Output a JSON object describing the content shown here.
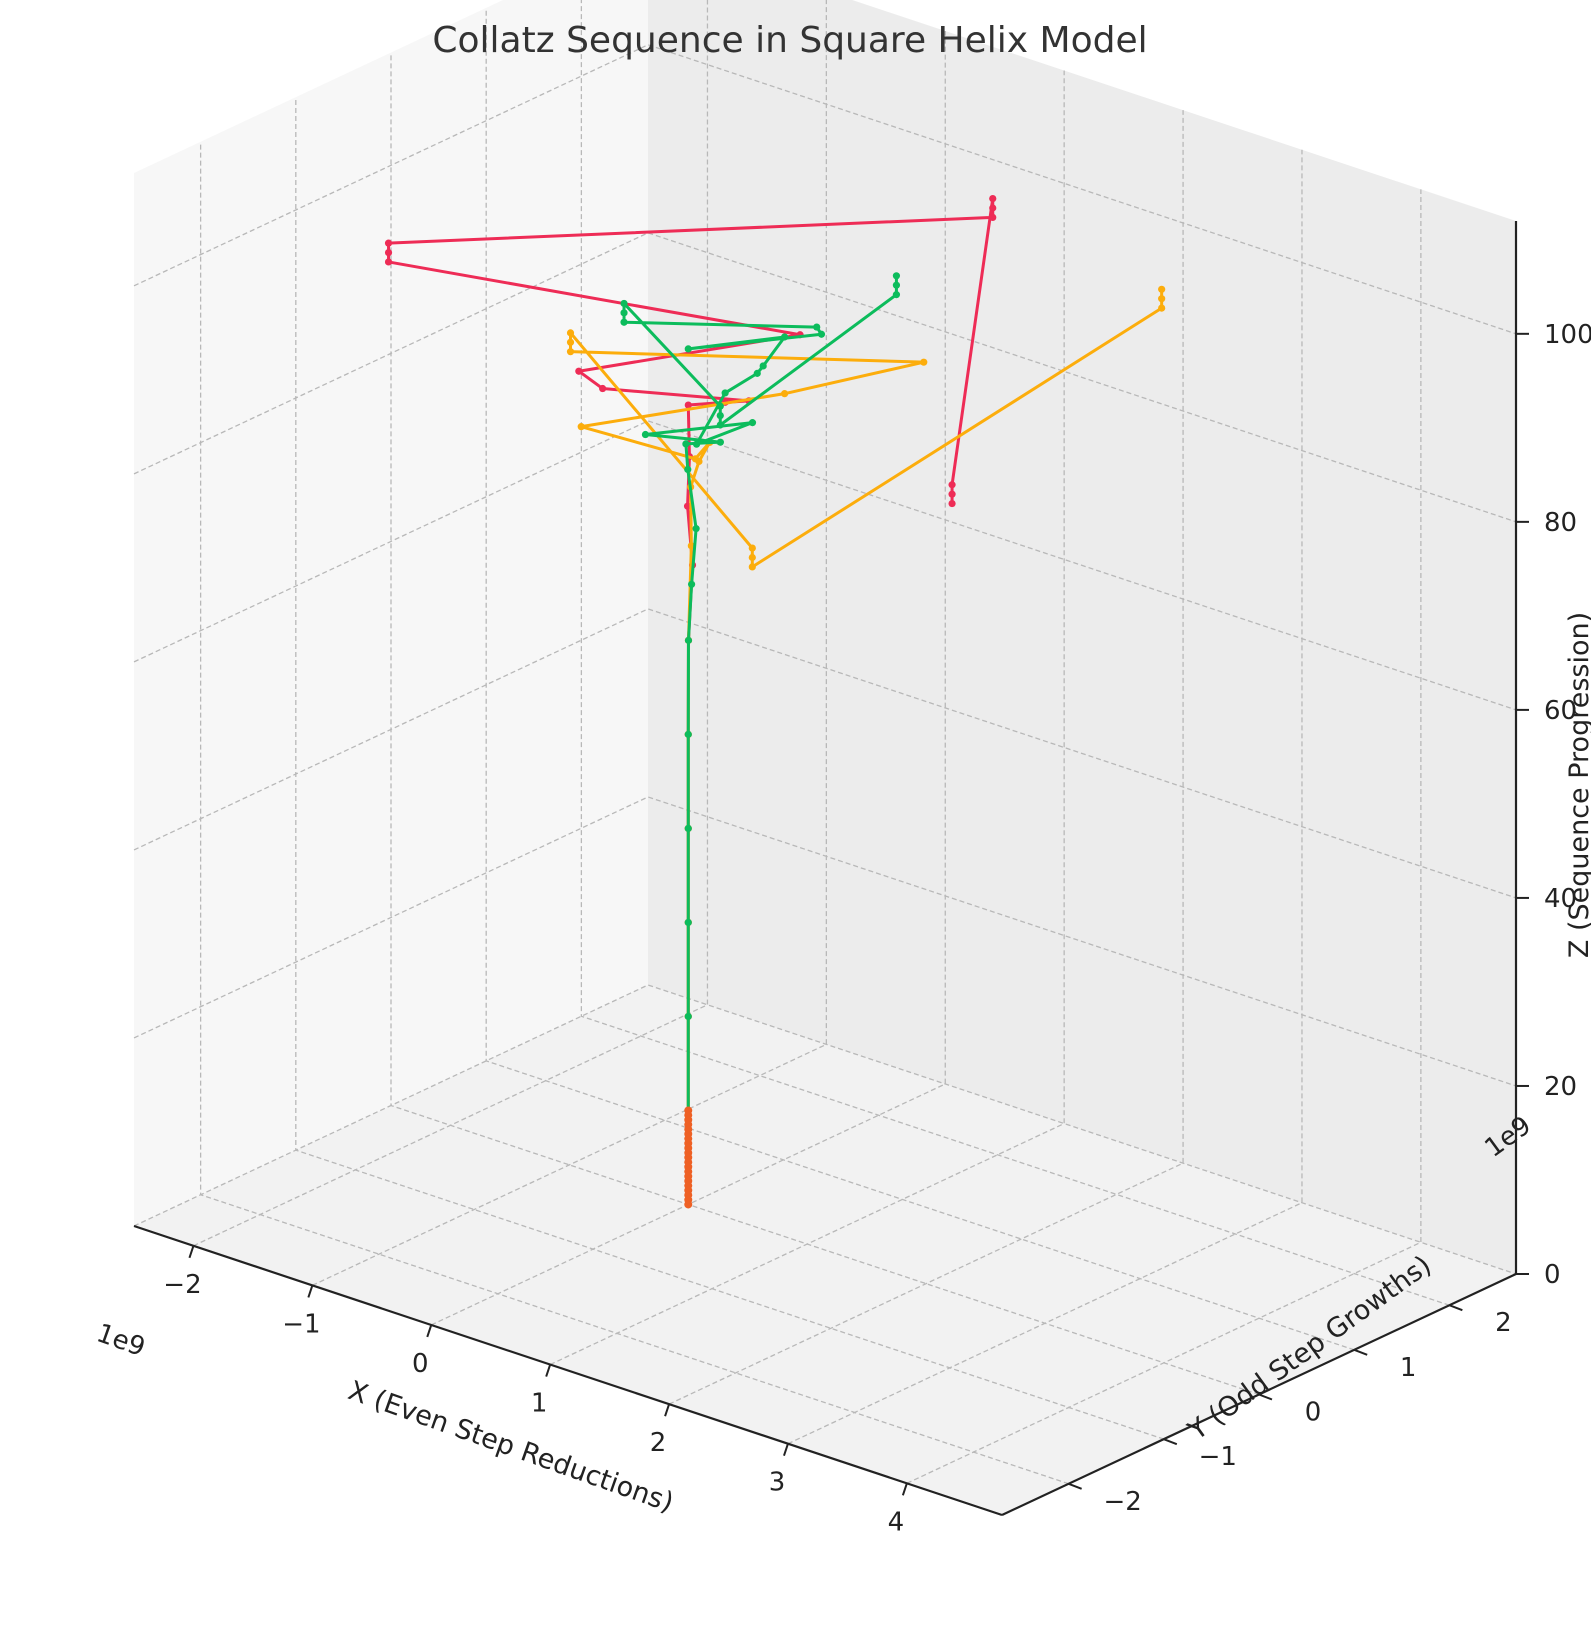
{
  "chart_data": {
    "type": "line",
    "projection": "3d",
    "title": "Collatz Sequence in Square Helix Model",
    "xlabel": "X (Even Step Reductions)",
    "ylabel": "Y (Odd Step Growths)",
    "zlabel": "Z (Sequence Progression)",
    "x_offset_label": "1e9",
    "y_offset_label": "1e9",
    "x_ticks": [
      "−2",
      "−1",
      "0",
      "1",
      "2",
      "3",
      "4"
    ],
    "y_ticks": [
      "−2",
      "−1",
      "0",
      "1",
      "2"
    ],
    "z_ticks": [
      "0",
      "20",
      "40",
      "60",
      "80",
      "100"
    ],
    "xlim": [
      -2.5,
      4.8
    ],
    "ylim": [
      -2.7,
      2.7
    ],
    "zlim": [
      0,
      112
    ],
    "grid": true,
    "legend": "none",
    "colors": {
      "red": "#ee2c56",
      "orange": "#fcad0c",
      "green": "#0cbc5c",
      "start": "#ee6024"
    },
    "series": [
      {
        "color": "#ee2c56",
        "points": [
          [
            0,
            0,
            0
          ],
          [
            0,
            0,
            10
          ],
          [
            0,
            0,
            20
          ],
          [
            0,
            0,
            30
          ],
          [
            0,
            0,
            40
          ],
          [
            0,
            0,
            50
          ],
          [
            0.001,
            0.001,
            60
          ],
          [
            0.02,
            0.02,
            68
          ],
          [
            -0.03,
            0.03,
            74
          ],
          [
            0.05,
            -0.05,
            80
          ],
          [
            -0.2,
            0.25,
            83
          ],
          [
            0.15,
            0.2,
            85
          ],
          [
            0.35,
            0.2,
            86
          ],
          [
            -0.4,
            -0.4,
            87
          ],
          [
            -0.6,
            -0.4,
            88
          ],
          [
            0.5,
            0.55,
            92
          ],
          [
            -1.4,
            -1.4,
            101
          ],
          [
            -1.4,
            -1.4,
            102
          ],
          [
            -1.4,
            -1.4,
            103
          ],
          [
            1.4,
            1.45,
            104
          ],
          [
            1.4,
            1.45,
            105
          ],
          [
            1.4,
            1.45,
            106
          ],
          [
            4.3,
            -2.6,
            107
          ],
          [
            4.3,
            -2.6,
            106
          ],
          [
            4.3,
            -2.6,
            105
          ]
        ]
      },
      {
        "color": "#fcad0c",
        "points": [
          [
            0,
            0,
            0
          ],
          [
            0,
            0,
            10
          ],
          [
            0,
            0,
            20
          ],
          [
            0,
            0,
            30
          ],
          [
            0,
            0,
            40
          ],
          [
            0,
            0,
            50
          ],
          [
            0.001,
            0.001,
            60
          ],
          [
            0.01,
            0.02,
            70
          ],
          [
            -0.02,
            0.05,
            76
          ],
          [
            0.05,
            0.05,
            79
          ],
          [
            0.1,
            0.1,
            81
          ],
          [
            0.3,
            -0.3,
            82
          ],
          [
            -0.5,
            -0.5,
            83
          ],
          [
            0.45,
            0.45,
            86
          ],
          [
            1.1,
            1.1,
            89
          ],
          [
            -0.55,
            -0.55,
            91
          ],
          [
            -0.55,
            -0.55,
            92
          ],
          [
            -0.55,
            -0.55,
            93
          ],
          [
            2.7,
            -2.7,
            94
          ],
          [
            2.7,
            -2.7,
            93
          ],
          [
            2.7,
            -2.7,
            92
          ],
          [
            1.9,
            2.6,
            91
          ],
          [
            1.9,
            2.6,
            92
          ],
          [
            1.9,
            2.6,
            93
          ]
        ]
      },
      {
        "color": "#0cbc5c",
        "points": [
          [
            0,
            0,
            0
          ],
          [
            0,
            0,
            10
          ],
          [
            0,
            0,
            20
          ],
          [
            0,
            0,
            30
          ],
          [
            0,
            0,
            40
          ],
          [
            0,
            0,
            50
          ],
          [
            0.001,
            0.001,
            60
          ],
          [
            0.02,
            0.01,
            66
          ],
          [
            0.05,
            0.02,
            72
          ],
          [
            -0.02,
            0.02,
            78
          ],
          [
            -0.1,
            0.1,
            80
          ],
          [
            0.15,
            0.15,
            81
          ],
          [
            -0.2,
            -0.2,
            82
          ],
          [
            0.3,
            0.3,
            83
          ],
          [
            0.35,
            -0.35,
            84
          ],
          [
            0.15,
            0.2,
            86
          ],
          [
            0.3,
            0.35,
            88
          ],
          [
            0.35,
            0.35,
            89
          ],
          [
            0.25,
            0.7,
            90
          ],
          [
            0,
            0,
            91
          ],
          [
            0.6,
            0.65,
            92
          ],
          [
            0.6,
            0.6,
            93
          ],
          [
            -0.3,
            -0.3,
            94
          ],
          [
            -0.3,
            -0.3,
            95
          ],
          [
            -0.3,
            -0.3,
            96
          ],
          [
            1.35,
            -1.35,
            97
          ],
          [
            1.35,
            -1.35,
            96
          ],
          [
            1.35,
            -1.35,
            95
          ],
          [
            0.75,
            1.25,
            94
          ],
          [
            0.75,
            1.25,
            95
          ],
          [
            0.75,
            1.25,
            96
          ]
        ]
      }
    ]
  }
}
